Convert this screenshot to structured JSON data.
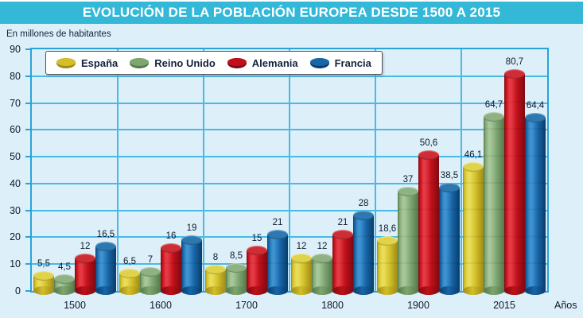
{
  "header": {
    "title": "EVOLUCIÓN DE LA POBLACIÓN EUROPEA DESDE 1500 A 2015",
    "bg_color": "#33b8d8",
    "text_color": "#ffffff"
  },
  "colors": {
    "page_background": "#ddeff8",
    "gridline": "#49b9e5",
    "plot_border": "#2aa3d8",
    "label_text": "#0e1a2e"
  },
  "chart_data": {
    "type": "bar",
    "title": "EVOLUCIÓN DE LA POBLACIÓN EUROPEA DESDE 1500 A 2015",
    "units_note": "En millones de habitantes",
    "xlabel": "Años",
    "ylabel": "En millones de habitantes",
    "categories": [
      "1500",
      "1600",
      "1700",
      "1800",
      "1900",
      "2015"
    ],
    "series": [
      {
        "name": "España",
        "values": [
          5.5,
          6.5,
          8,
          12,
          18.6,
          46.1
        ],
        "labels": [
          "5,5",
          "6,5",
          "8",
          "12",
          "18,6",
          "46,1"
        ],
        "colors": {
          "main": "#d2bf2a",
          "light": "#e9dd58",
          "dark": "#9f8a16",
          "cap": "#e0d34a"
        }
      },
      {
        "name": "Reino Unido",
        "values": [
          4.5,
          7,
          8.5,
          12,
          37,
          64.7
        ],
        "labels": [
          "4,5",
          "7",
          "8,5",
          "12",
          "37",
          "64,7"
        ],
        "colors": {
          "main": "#7da671",
          "light": "#a7c79a",
          "dark": "#55784a",
          "cap": "#8fb283"
        }
      },
      {
        "name": "Alemania",
        "values": [
          12,
          16,
          15,
          21,
          50.6,
          80.7
        ],
        "labels": [
          "12",
          "16",
          "15",
          "21",
          "50,6",
          "80,7"
        ],
        "colors": {
          "main": "#c01019",
          "light": "#e53945",
          "dark": "#7e0a12",
          "cap": "#ce2d35"
        }
      },
      {
        "name": "Francia",
        "values": [
          16.5,
          19,
          21,
          28,
          38.5,
          64.4
        ],
        "labels": [
          "16,5",
          "19",
          "21",
          "28",
          "38,5",
          "64,4"
        ],
        "colors": {
          "main": "#1766a9",
          "light": "#3e92cf",
          "dark": "#0a3c69",
          "cap": "#2d78b0"
        }
      }
    ],
    "ylim": [
      0,
      90
    ],
    "ytick_step": 10,
    "yticks": [
      "0",
      "10",
      "20",
      "30",
      "40",
      "50",
      "60",
      "70",
      "80",
      "90"
    ],
    "grid": true,
    "legend_position": "top-left"
  }
}
